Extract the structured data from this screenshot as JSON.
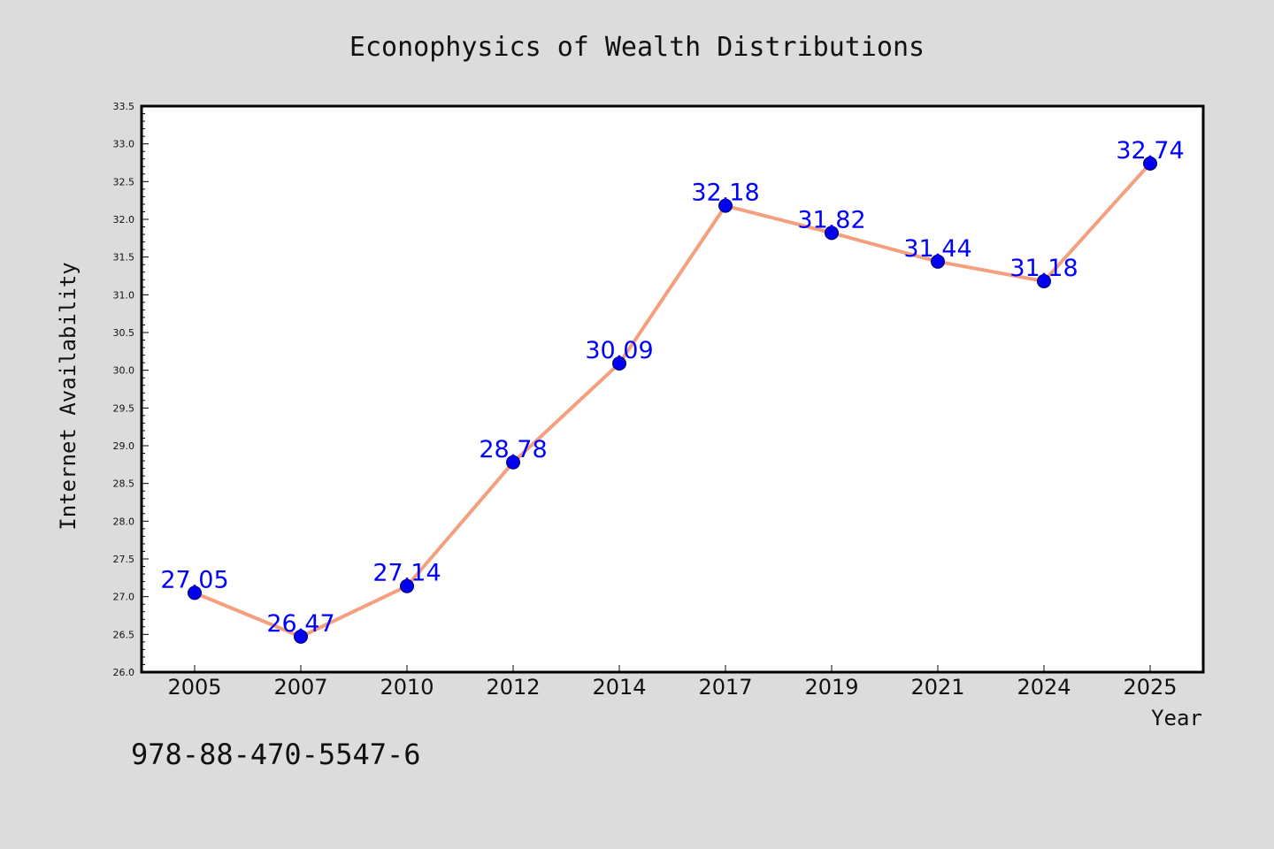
{
  "chart_data": {
    "type": "line",
    "title": "Econophysics of Wealth Distributions",
    "xlabel": "Year",
    "ylabel": "Internet Availability",
    "categories": [
      "2005",
      "2007",
      "2010",
      "2012",
      "2014",
      "2017",
      "2019",
      "2021",
      "2024",
      "2025"
    ],
    "series": [
      {
        "values": [
          27.05,
          26.47,
          27.14,
          28.78,
          30.09,
          32.18,
          31.82,
          31.44,
          31.18,
          32.74
        ]
      }
    ],
    "data_labels": [
      "27.05",
      "26.47",
      "27.14",
      "28.78",
      "30.09",
      "32.18",
      "31.82",
      "31.44",
      "31.18",
      "32.74"
    ],
    "ylim": [
      26.0,
      33.5
    ],
    "yticks": [
      26.0,
      26.5,
      27.0,
      27.5,
      28.0,
      28.5,
      29.0,
      29.5,
      30.0,
      30.5,
      31.0,
      31.5,
      32.0,
      32.5,
      33.0,
      33.5
    ],
    "grid": false,
    "legend": "none",
    "colors": {
      "line": "#f4a07e",
      "marker": "#0000ee",
      "data_label": "#0000ff",
      "background": "#dcdcdc",
      "plot_area": "#ffffff"
    }
  },
  "footer": {
    "isbn": "978-88-470-5547-6"
  }
}
